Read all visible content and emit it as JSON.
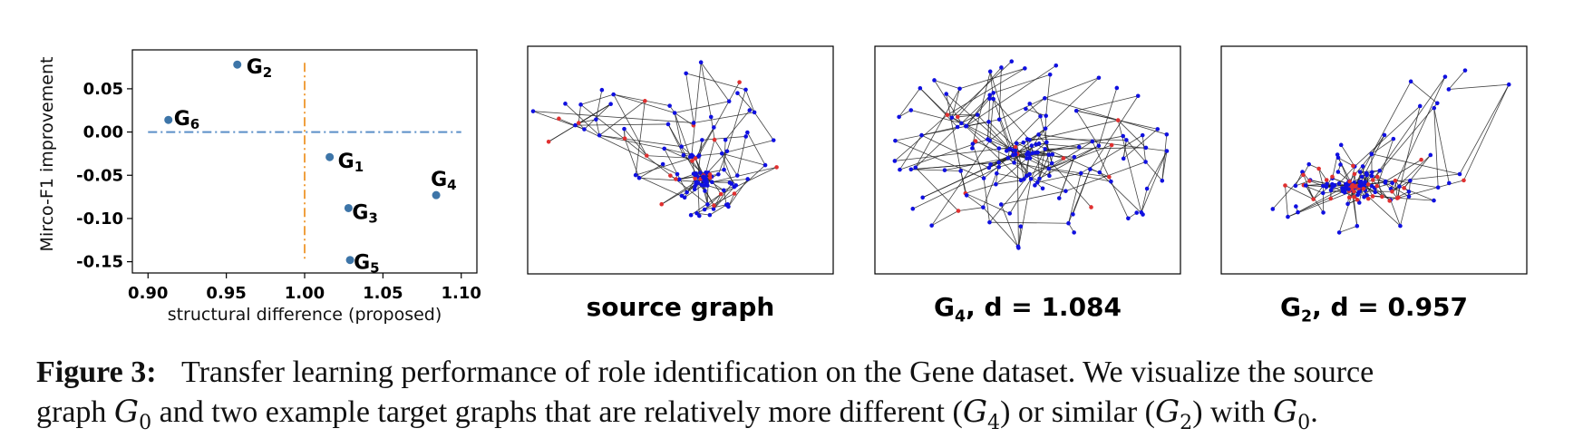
{
  "chart_data": {
    "type": "scatter",
    "xlabel": "structural difference (proposed)",
    "ylabel": "Mirco-F1 improvement",
    "xlim": [
      0.89,
      1.11
    ],
    "ylim": [
      -0.163,
      0.095
    ],
    "xticks": [
      "0.90",
      "0.95",
      "1.00",
      "1.05",
      "1.10"
    ],
    "yticks": [
      "0.05",
      "0.00",
      "-0.05",
      "-0.10",
      "-0.15"
    ],
    "points": [
      {
        "label": "G",
        "sub": "2",
        "x": 0.957,
        "y": 0.078
      },
      {
        "label": "G",
        "sub": "6",
        "x": 0.913,
        "y": 0.014
      },
      {
        "label": "G",
        "sub": "1",
        "x": 1.016,
        "y": -0.029
      },
      {
        "label": "G",
        "sub": "4",
        "x": 1.084,
        "y": -0.073
      },
      {
        "label": "G",
        "sub": "3",
        "x": 1.028,
        "y": -0.088
      },
      {
        "label": "G",
        "sub": "5",
        "x": 1.029,
        "y": -0.148
      }
    ],
    "reference_lines": [
      {
        "orientation": "horizontal",
        "value": 0.0,
        "style": "dash-dot",
        "color": "#5b8fc8"
      },
      {
        "orientation": "vertical",
        "value": 1.0,
        "style": "dash-dot",
        "color": "#f0a040"
      }
    ],
    "point_color": "#3d75a8",
    "grid": false
  },
  "graph_panels": [
    {
      "title": "source graph",
      "title_sub": "",
      "title_suffix": ""
    },
    {
      "title": "G",
      "title_sub": "4",
      "title_suffix": ", d = 1.084"
    },
    {
      "title": "G",
      "title_sub": "2",
      "title_suffix": ", d = 0.957"
    }
  ],
  "colors": {
    "node_blue": "#1010e0",
    "node_red": "#e03030",
    "edge": "#222222"
  },
  "caption": {
    "label": "Figure 3:",
    "line1_text": "Transfer learning performance of role identification on the Gene dataset. We visualize the source",
    "line2_a": "graph",
    "line2_g0": "G",
    "line2_g0_sub": "0",
    "line2_b": "and two example target graphs that are relatively more different (",
    "line2_g4": "G",
    "line2_g4_sub": "4",
    "line2_c": ") or similar (",
    "line2_g2": "G",
    "line2_g2_sub": "2",
    "line2_d": ") with",
    "line2_g0b": "G",
    "line2_g0b_sub": "0",
    "line2_e": "."
  }
}
